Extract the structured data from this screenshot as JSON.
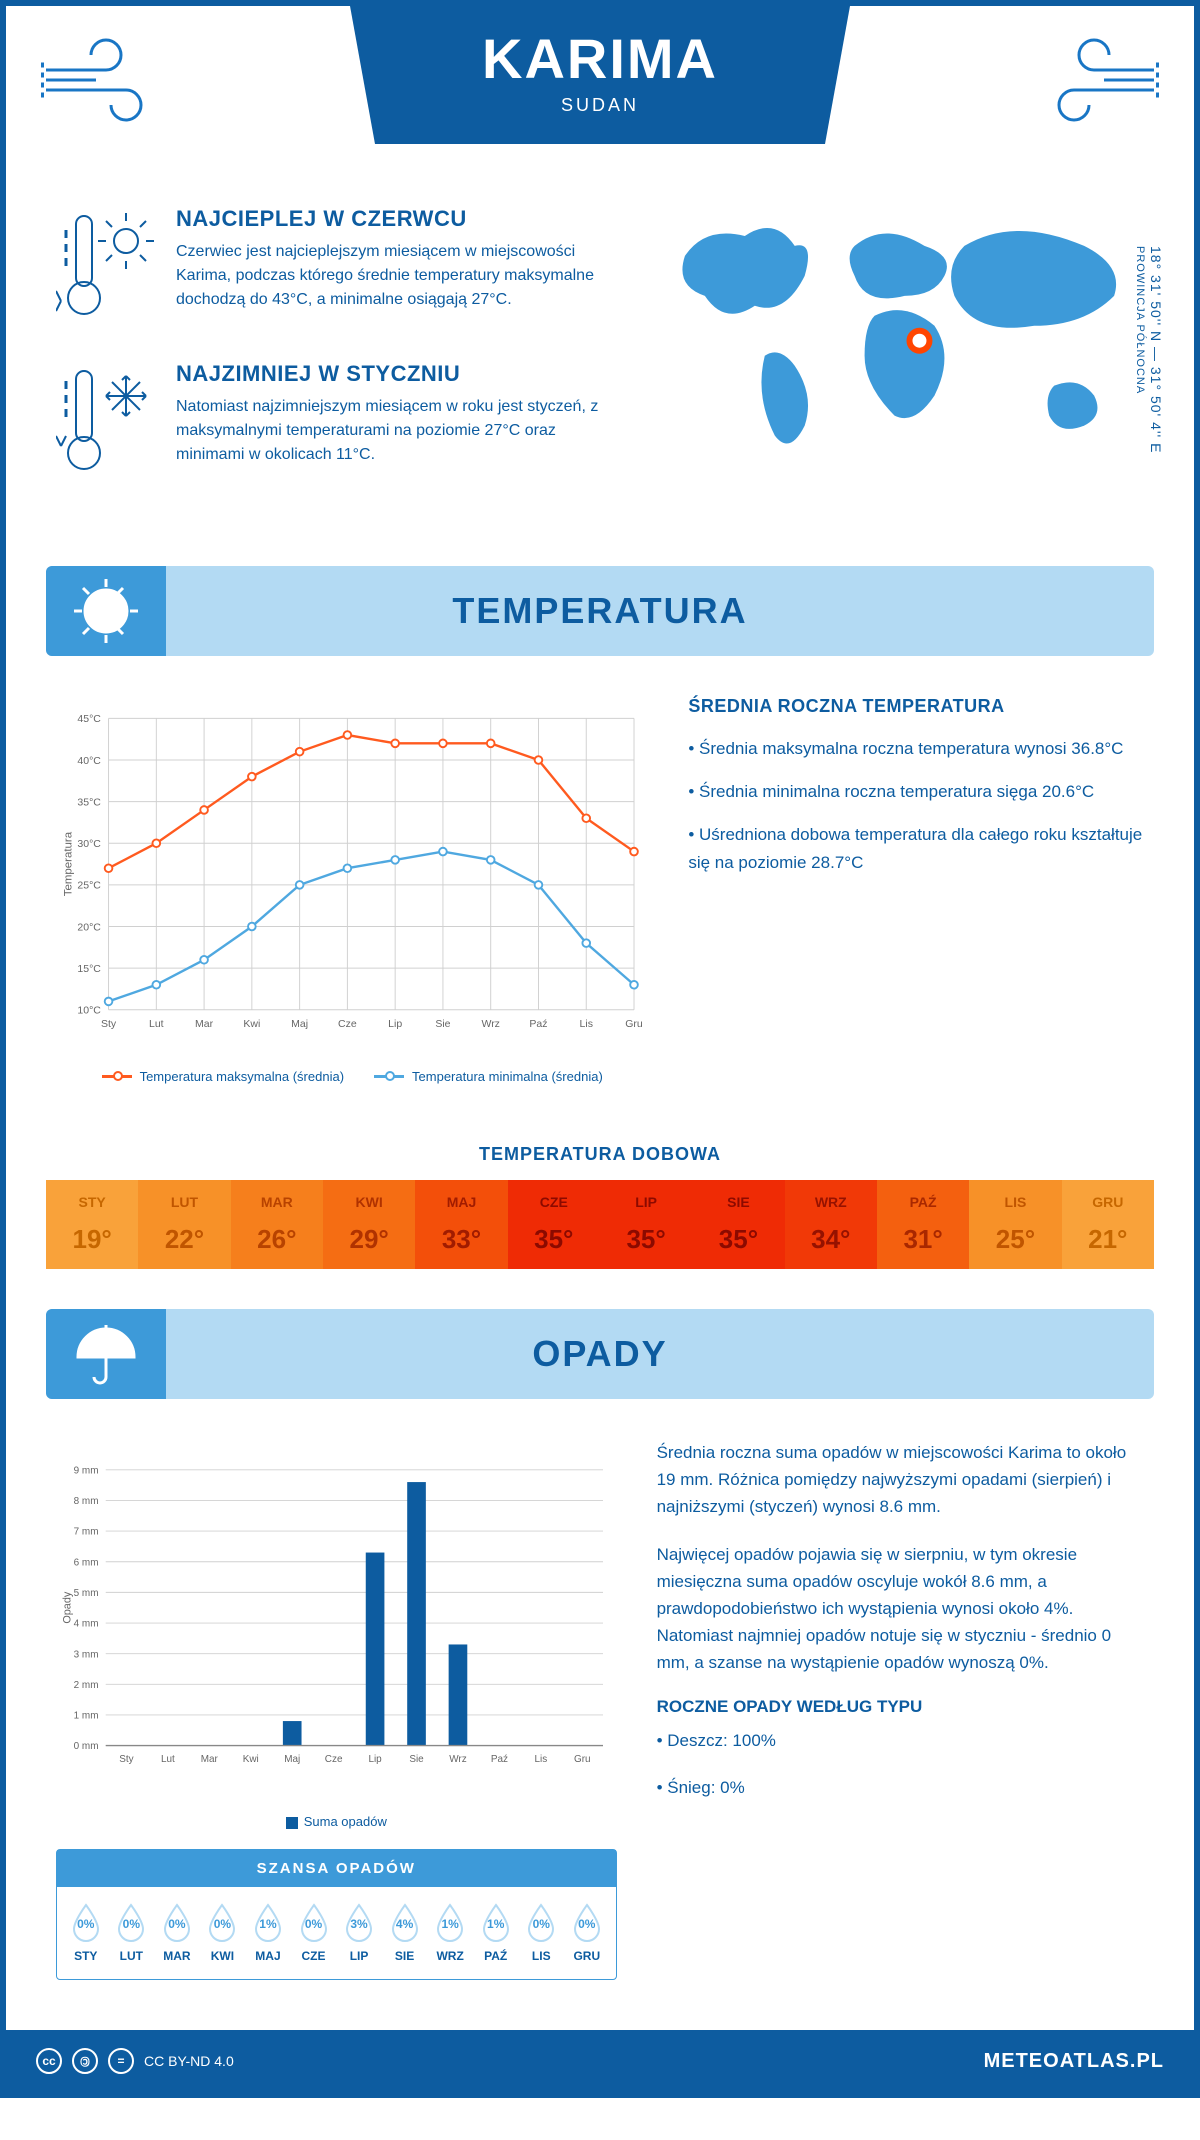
{
  "header": {
    "city": "KARIMA",
    "country": "SUDAN"
  },
  "coords": {
    "lat_lon": "18° 31' 50'' N — 31° 50' 4'' E",
    "province": "PROWINCJA PÓŁNOCNA"
  },
  "facts": {
    "hot": {
      "title": "NAJCIEPLEJ W CZERWCU",
      "text": "Czerwiec jest najcieplejszym miesiącem w miejscowości Karima, podczas którego średnie temperatury maksymalne dochodzą do 43°C, a minimalne osiągają 27°C."
    },
    "cold": {
      "title": "NAJZIMNIEJ W STYCZNIU",
      "text": "Natomiast najzimniejszym miesiącem w roku jest styczeń, z maksymalnymi temperaturami na poziomie 27°C oraz minimami w okolicach 11°C."
    }
  },
  "temperature_section": {
    "title": "TEMPERATURA",
    "stats_title": "ŚREDNIA ROCZNA TEMPERATURA",
    "stats": [
      "• Średnia maksymalna roczna temperatura wynosi 36.8°C",
      "• Średnia minimalna roczna temperatura sięga 20.6°C",
      "• Uśredniona dobowa temperatura dla całego roku kształtuje się na poziomie 28.7°C"
    ],
    "chart": {
      "type": "line",
      "y_label": "Temperatura",
      "y_min": 10,
      "y_max": 45,
      "y_step": 5,
      "y_ticks": [
        "10°C",
        "15°C",
        "20°C",
        "25°C",
        "30°C",
        "35°C",
        "40°C",
        "45°C"
      ],
      "x_labels": [
        "Sty",
        "Lut",
        "Mar",
        "Kwi",
        "Maj",
        "Cze",
        "Lip",
        "Sie",
        "Wrz",
        "Paź",
        "Lis",
        "Gru"
      ],
      "grid_color": "#d8d8d8",
      "series": [
        {
          "name": "Temperatura maksymalna (średnia)",
          "color": "#ff5a1f",
          "values": [
            27,
            30,
            34,
            38,
            41,
            43,
            42,
            42,
            42,
            40,
            33,
            29
          ]
        },
        {
          "name": "Temperatura minimalna (średnia)",
          "color": "#4fa8e0",
          "values": [
            11,
            13,
            16,
            20,
            25,
            27,
            28,
            29,
            28,
            25,
            18,
            13
          ]
        }
      ],
      "legend": {
        "max": "Temperatura maksymalna (średnia)",
        "min": "Temperatura minimalna (średnia)"
      }
    },
    "daily": {
      "title": "TEMPERATURA DOBOWA",
      "months": [
        "STY",
        "LUT",
        "MAR",
        "KWI",
        "MAJ",
        "CZE",
        "LIP",
        "SIE",
        "WRZ",
        "PAŹ",
        "LIS",
        "GRU"
      ],
      "values": [
        "19°",
        "22°",
        "26°",
        "29°",
        "33°",
        "35°",
        "35°",
        "35°",
        "34°",
        "31°",
        "25°",
        "21°"
      ],
      "colors": [
        "#f9a23a",
        "#f79128",
        "#f67f1c",
        "#f56d13",
        "#f34f0a",
        "#ef2b05",
        "#ef2b05",
        "#ef2b05",
        "#f13907",
        "#f4600f",
        "#f79128",
        "#f9a23a"
      ],
      "text_colors": [
        "#c66700",
        "#c05500",
        "#b84300",
        "#b03200",
        "#a11c00",
        "#8c0a00",
        "#8c0a00",
        "#8c0a00",
        "#961200",
        "#a92800",
        "#c05500",
        "#c66700"
      ]
    }
  },
  "precip_section": {
    "title": "OPADY",
    "chart": {
      "type": "bar",
      "y_label": "Opady",
      "y_min": 0,
      "y_max": 9,
      "y_step": 1,
      "y_ticks": [
        "0 mm",
        "1 mm",
        "2 mm",
        "3 mm",
        "4 mm",
        "5 mm",
        "6 mm",
        "7 mm",
        "8 mm",
        "9 mm"
      ],
      "x_labels": [
        "Sty",
        "Lut",
        "Mar",
        "Kwi",
        "Maj",
        "Cze",
        "Lip",
        "Sie",
        "Wrz",
        "Paź",
        "Lis",
        "Gru"
      ],
      "values": [
        0,
        0,
        0,
        0,
        0.8,
        0,
        6.3,
        8.6,
        3.3,
        0,
        0,
        0
      ],
      "bar_color": "#0d5ca0",
      "legend": "Suma opadów"
    },
    "text1": "Średnia roczna suma opadów w miejscowości Karima to około 19 mm. Różnica pomiędzy najwyższymi opadami (sierpień) i najniższymi (styczeń) wynosi 8.6 mm.",
    "text2": "Najwięcej opadów pojawia się w sierpniu, w tym okresie miesięczna suma opadów oscyluje wokół 8.6 mm, a prawdopodobieństwo ich wystąpienia wynosi około 4%. Natomiast najmniej opadów notuje się w styczniu - średnio 0 mm, a szanse na wystąpienie opadów wynoszą 0%.",
    "chance": {
      "title": "SZANSA OPADÓW",
      "months": [
        "STY",
        "LUT",
        "MAR",
        "KWI",
        "MAJ",
        "CZE",
        "LIP",
        "SIE",
        "WRZ",
        "PAŹ",
        "LIS",
        "GRU"
      ],
      "values": [
        "0%",
        "0%",
        "0%",
        "0%",
        "1%",
        "0%",
        "3%",
        "4%",
        "1%",
        "1%",
        "0%",
        "0%"
      ]
    },
    "by_type": {
      "title": "ROCZNE OPADY WEDŁUG TYPU",
      "items": [
        "• Deszcz: 100%",
        "• Śnieg: 0%"
      ]
    }
  },
  "footer": {
    "license": "CC BY-ND 4.0",
    "site": "METEOATLAS.PL"
  }
}
